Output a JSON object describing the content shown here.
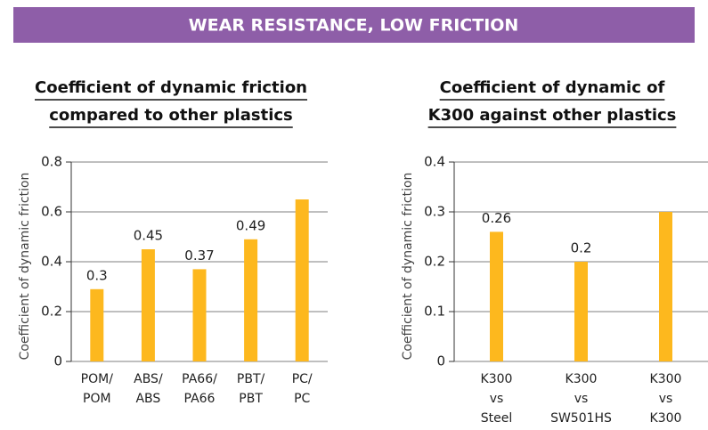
{
  "header": {
    "title": "WEAR RESISTANCE, LOW FRICTION"
  },
  "chart_data": [
    {
      "type": "bar",
      "title": [
        "Coefficient of dynamic friction",
        "compared to other plastics"
      ],
      "y_label": "Coefficient of dynamic friction",
      "categories": [
        [
          "POM/",
          "POM"
        ],
        [
          "ABS/",
          "ABS"
        ],
        [
          "PA66/",
          "PA66"
        ],
        [
          "PBT/",
          "PBT"
        ],
        [
          "PC/",
          "PC"
        ]
      ],
      "values": [
        0.29,
        0.45,
        0.37,
        0.49,
        0.65
      ],
      "value_labels": [
        "0.3",
        "0.45",
        "0.37",
        "0.49",
        null
      ],
      "color": "#fdb81e",
      "ylim": [
        0,
        0.8
      ],
      "yticks": [
        0,
        0.2,
        0.4,
        0.6,
        0.8
      ],
      "grid": true
    },
    {
      "type": "bar",
      "title": [
        "Coefficient of dynamic of",
        "K300 against other plastics"
      ],
      "y_label": "Coefficient of dynamic friction",
      "categories": [
        [
          "K300",
          "vs",
          "Steel"
        ],
        [
          "K300",
          "vs",
          "SW501HS"
        ],
        [
          "K300",
          "vs",
          "K300"
        ]
      ],
      "values": [
        0.26,
        0.2,
        0.3
      ],
      "value_labels": [
        "0.26",
        "0.2",
        null
      ],
      "color": "#fdb81e",
      "ylim": [
        0,
        0.4
      ],
      "yticks": [
        0,
        0.1,
        0.2,
        0.3,
        0.4
      ],
      "grid": true
    }
  ]
}
